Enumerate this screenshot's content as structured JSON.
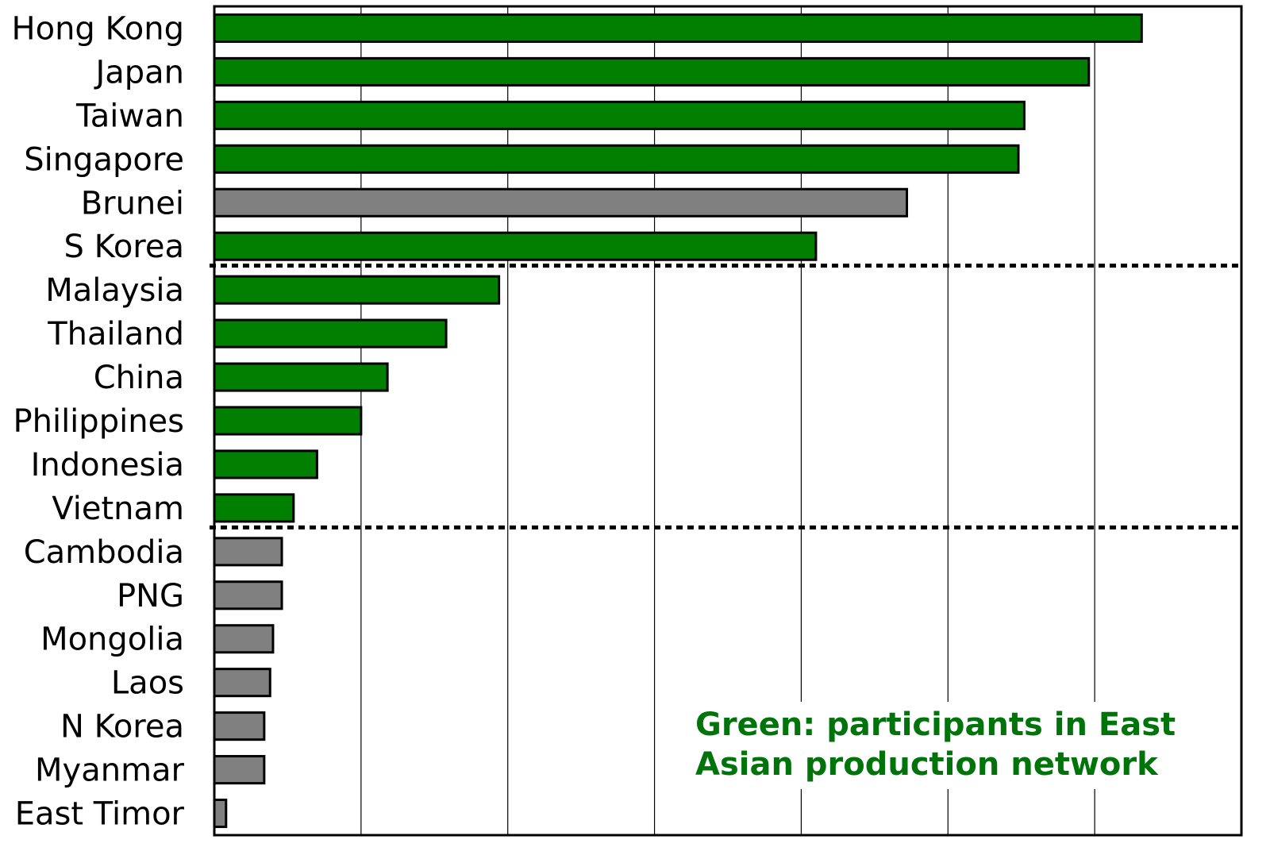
{
  "chart_data": {
    "type": "bar",
    "orientation": "horizontal",
    "title": "",
    "xlabel": "",
    "ylabel": "",
    "xlim": [
      0,
      70
    ],
    "grid": "vertical",
    "categories": [
      "Hong Kong",
      "Japan",
      "Taiwan",
      "Singapore",
      "Brunei",
      "S Korea",
      "Malaysia",
      "Thailand",
      "China",
      "Philippines",
      "Indonesia",
      "Vietnam",
      "Cambodia",
      "PNG",
      "Mongolia",
      "Laos",
      "N Korea",
      "Myanmar",
      "East Timor"
    ],
    "values": [
      63.2,
      59.6,
      55.2,
      54.8,
      47.2,
      41.0,
      19.4,
      15.8,
      11.8,
      10.0,
      7.0,
      5.4,
      4.6,
      4.6,
      4.0,
      3.8,
      3.4,
      3.4,
      0.8
    ],
    "groups": [
      "green",
      "green",
      "green",
      "green",
      "gray",
      "green",
      "green",
      "green",
      "green",
      "green",
      "green",
      "green",
      "gray",
      "gray",
      "gray",
      "gray",
      "gray",
      "gray",
      "gray"
    ],
    "group_dividers_after": [
      "S Korea",
      "Vietnam"
    ],
    "colors": {
      "green": "#007f00",
      "gray": "#808080",
      "note": "#00730b",
      "divider": "#000000"
    },
    "annotation": {
      "line1": "Green: participants in East",
      "line2": "Asian production network"
    }
  }
}
